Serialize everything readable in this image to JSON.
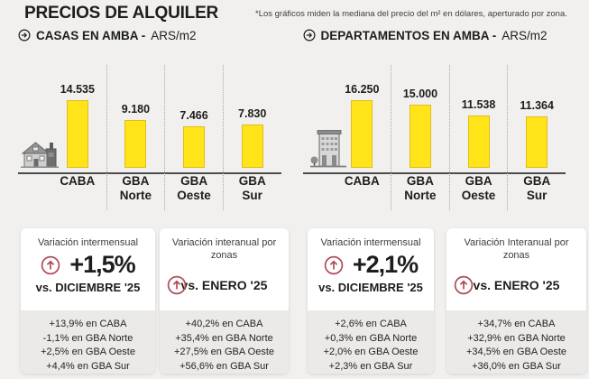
{
  "page": {
    "title": "PRECIOS DE ALQUILER",
    "note": "*Los gráficos miden la mediana del precio del m² en dólares, aperturado por zona."
  },
  "colors": {
    "bar_yellow": "#ffe41a",
    "bar_border": "#e3bd18",
    "accent_red": "#b04a57",
    "page_bg": "#f1f0ee",
    "card_bg": "#ffffff",
    "card_list_bg": "#ebeae8",
    "text_dark": "#1d1d1b"
  },
  "sections": [
    {
      "heading": "CASAS EN AMBA -",
      "unit": "ARS/m2"
    },
    {
      "heading": "DEPARTAMENTOS EN AMBA -",
      "unit": "ARS/m2"
    }
  ],
  "chart_data": [
    {
      "type": "bar",
      "title": "CASAS EN AMBA",
      "unit": "ARS/m2",
      "categories": [
        "CABA",
        "GBA Norte",
        "GBA Oeste",
        "GBA Sur"
      ],
      "values": [
        14535,
        9180,
        7466,
        7830
      ],
      "value_labels": [
        "14.535",
        "9.180",
        "7.466",
        "7.830"
      ],
      "icon": "house-icon",
      "ylim": [
        0,
        16000
      ],
      "grid": false,
      "legend": "none"
    },
    {
      "type": "bar",
      "title": "DEPARTAMENTOS EN AMBA",
      "unit": "ARS/m2",
      "categories": [
        "CABA",
        "GBA Norte",
        "GBA Oeste",
        "GBA Sur"
      ],
      "values": [
        16250,
        15000,
        11538,
        11364
      ],
      "value_labels": [
        "16.250",
        "15.000",
        "11.538",
        "11.364"
      ],
      "icon": "building-icon",
      "ylim": [
        0,
        17000
      ],
      "grid": false,
      "legend": "none"
    }
  ],
  "cards": [
    {
      "header": "Variación intermensual",
      "big_value": "+1,5%",
      "vs_label": "vs. DICIEMBRE '25",
      "zones": [
        "+13,9% en CABA",
        "-1,1% en GBA Norte",
        "+2,5% en GBA Oeste",
        "+4,4% en GBA Sur"
      ]
    },
    {
      "header": "Variación interanual por zonas",
      "vs_label": "vs. ENERO '25",
      "zones": [
        "+40,2% en CABA",
        "+35,4% en GBA Norte",
        "+27,5% en GBA Oeste",
        "+56,6% en GBA Sur"
      ]
    },
    {
      "header": "Variación intermensual",
      "big_value": "+2,1%",
      "vs_label": "vs. DICIEMBRE '25",
      "zones": [
        "+2,6% en CABA",
        "+0,3% en GBA Norte",
        "+2,0% en GBA Oeste",
        "+2,3% en GBA Sur"
      ]
    },
    {
      "header": "Variación Interanual por zonas",
      "vs_label": "vs. ENERO '25",
      "zones": [
        "+34,7% en CABA",
        "+32,9% en GBA Norte",
        "+34,5% en GBA Oeste",
        "+36,0% en GBA Sur"
      ]
    }
  ]
}
